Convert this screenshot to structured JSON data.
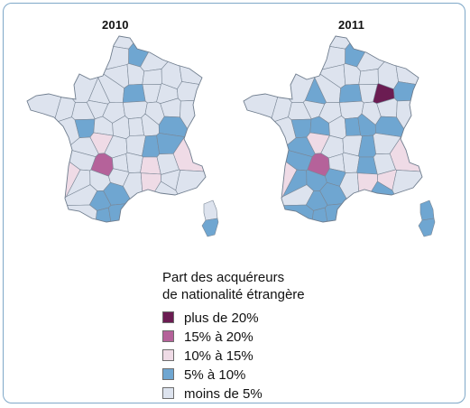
{
  "maps": [
    {
      "title": "2010",
      "classes": {
        "1": [
          2,
          12,
          36,
          37,
          26,
          31,
          55,
          54,
          58,
          63,
          62,
          64,
          68,
          71,
          70,
          59,
          60
        ],
        "2": [
          39
        ],
        "3": [
          33,
          44,
          42,
          45,
          50
        ],
        "4": [
          67
        ]
      }
    },
    {
      "title": "2011",
      "classes": {
        "1": [
          2,
          10,
          12,
          15,
          29,
          30,
          36,
          31,
          32,
          38,
          26,
          27,
          42,
          55,
          46,
          54,
          47,
          48,
          56,
          57,
          62,
          58,
          63,
          64,
          60,
          59,
          68,
          69,
          66,
          70,
          65,
          71
        ],
        "2": [
          39
        ],
        "3": [
          33,
          44,
          45,
          50,
          51
        ],
        "4": [
          67,
          14
        ]
      }
    }
  ],
  "legend": {
    "title_line1": "Part des acquéreurs",
    "title_line2": "de nationalité étrangère",
    "items": [
      {
        "label": "plus de 20%",
        "color": "#6b1c52"
      },
      {
        "label": "15% à 20%",
        "color": "#b5629a"
      },
      {
        "label": "10% à 15%",
        "color": "#efdbe6"
      },
      {
        "label": "5% à 10%",
        "color": "#6fa6d1"
      },
      {
        "label": "moins de 5%",
        "color": "#dde3ee"
      }
    ]
  }
}
